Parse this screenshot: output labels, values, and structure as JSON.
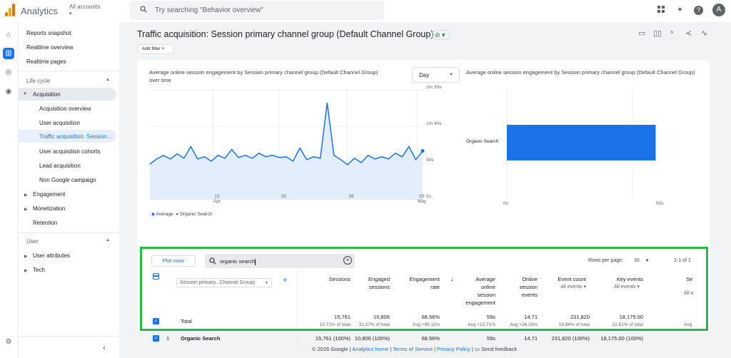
{
  "app": {
    "name": "Analytics",
    "account_label": "All accounts",
    "account_chevron": "▾"
  },
  "search": {
    "placeholder": "Try searching \"Behavior overview\""
  },
  "avatar": "A",
  "nav": {
    "top_items": [
      "Reports snapshot",
      "Realtime overview",
      "Realtime pages"
    ],
    "section_lifecycle": "Life cycle",
    "acquisition": "Acquisition",
    "acquisition_children": [
      "Acquisition overview",
      "User acquisition",
      "Traffic acquisition: Session...",
      "User acquisition cohorts",
      "Lead acquisition",
      "Non Google campaign"
    ],
    "lifecycle_rest": [
      "Engagement",
      "Monetization",
      "Retention"
    ],
    "section_user": "User",
    "user_items": [
      "User attributes",
      "Tech"
    ]
  },
  "page": {
    "title": "Traffic acquisition: Session primary channel group (Default Channel Group)",
    "check": "⊘ ▾",
    "add_filter": "Add filter  +"
  },
  "line_chart": {
    "title": "Average online session engagement by Session primary channel group (Default Channel Group) over time",
    "period": "Day",
    "y_ticks": [
      "2m 30s",
      "1m 40s",
      "50s",
      "0s"
    ],
    "x_ticks": [
      {
        "top": "12",
        "bottom": "Apr"
      },
      {
        "top": "19",
        "bottom": ""
      },
      {
        "top": "26",
        "bottom": ""
      },
      {
        "top": "03",
        "bottom": "May"
      }
    ],
    "legend": [
      "Average",
      "Organic Search"
    ]
  },
  "bar_chart": {
    "title": "Average online session engagement by Session primary channel group (Default Channel Group)",
    "category": "Organic Search",
    "x_ticks": [
      "0s",
      "50s"
    ]
  },
  "chart_data": [
    {
      "type": "line",
      "title": "Average online session engagement by Session primary channel group (Default Channel Group) over time",
      "xlabel": "",
      "ylabel": "",
      "y_unit": "seconds",
      "ylim": [
        0,
        150
      ],
      "y_tick_labels": [
        "0s",
        "50s",
        "1m 40s",
        "2m 30s"
      ],
      "x_tick_labels": [
        "12 Apr",
        "19",
        "26",
        "03 May"
      ],
      "series": [
        {
          "name": "Organic Search",
          "values": [
            48,
            55,
            60,
            55,
            62,
            56,
            72,
            55,
            58,
            52,
            60,
            56,
            68,
            57,
            60,
            56,
            63,
            58,
            60,
            57,
            58,
            52,
            70,
            54,
            58,
            56,
            132,
            60,
            54,
            47,
            56,
            50,
            60,
            55,
            58,
            55,
            63,
            58,
            72,
            54,
            66
          ]
        }
      ],
      "grid": true,
      "legend": "bottom-left"
    },
    {
      "type": "bar",
      "orientation": "horizontal",
      "title": "Average online session engagement by Session primary channel group (Default Channel Group)",
      "categories": [
        "Organic Search"
      ],
      "values": [
        59
      ],
      "xlim": [
        0,
        60
      ],
      "x_tick_labels": [
        "0s",
        "50s"
      ]
    }
  ],
  "table_controls": {
    "plot_rows": "Plot rows",
    "search_value": "organic search",
    "rows_per_page_label": "Rows per page:",
    "rows_per_page": "10",
    "range": "1-1 of 1",
    "dimension": "Session primary...Channel Group)"
  },
  "table": {
    "headers": [
      "Sessions",
      "Engaged\nsessions",
      "Engagement\nrate",
      "Average\nonline\nsession\nengagement",
      "Online\nsession\nevents",
      "Event count",
      "Key events",
      "Se"
    ],
    "header_subs": {
      "event_count": "All events ▾",
      "key_events": "All events ▾",
      "cut": "All e"
    },
    "total": {
      "label": "Total",
      "values": [
        "15,761",
        "10,806",
        "68.56%",
        "59s",
        "14.71",
        "231,820",
        "18,175.00"
      ],
      "subs": [
        "15.71% of total",
        "31.27% of total",
        "Avg +99.11%",
        "Avg +23.71%",
        "Avg +26.29%",
        "19.84% of total",
        "22.61% of total",
        "Avg"
      ]
    },
    "row": {
      "index": "1",
      "label": "Organic Search",
      "values": [
        "15,761 (100%)",
        "10,806 (100%)",
        "68.56%",
        "59s",
        "14.71",
        "231,820 (100%)",
        "18,175.00 (100%)"
      ]
    }
  },
  "footer": {
    "copyright": "© 2026 Google |",
    "home": "Analytics home",
    "tos": "Terms of Service",
    "privacy": "Privacy Policy",
    "feedback": "Send feedback",
    "sep": "|"
  },
  "colors": {
    "accent": "#1a73e8",
    "highlight_box": "#1fbf3f"
  }
}
